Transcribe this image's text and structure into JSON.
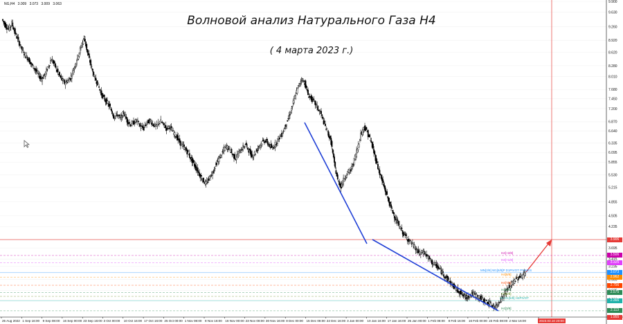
{
  "header": {
    "symbol": "NG,H4",
    "ohlc": [
      "3.009",
      "3.073",
      "3.009",
      "3.063"
    ]
  },
  "title": {
    "main": "Волновой анализ Натурального Газа H4",
    "sub": "( 4 марта 2023 г.)"
  },
  "price_axis": {
    "ticks": [
      "9.900",
      "9.630",
      "9.260",
      "8.920",
      "8.620",
      "8.280",
      "8.010",
      "7.680",
      "7.450",
      "7.200",
      "6.870",
      "6.640",
      "6.335",
      "6.095",
      "5.855",
      "5.530",
      "5.215",
      "4.855",
      "4.505",
      "4.235",
      "3.906",
      "3.695",
      "3.415",
      "3.235",
      "2.905",
      "2.625",
      "2.396",
      "1.955"
    ]
  },
  "time_axis": {
    "ticks": [
      "25 Aug 2022",
      "1 Sep 16:00",
      "9 Sep 08:00",
      "16 Sep 00:00",
      "23 Sep 16:00",
      "3 Oct 00:00",
      "10 Oct 16:00",
      "17 Oct 16:00",
      "25 Oct 00:00",
      "1 Nov 08:00",
      "8 Nov 16:00",
      "16 Nov 00:00",
      "23 Nov 08:00",
      "30 Nov 16:00",
      "8 Dec 00:00",
      "15 Dec 08:00",
      "22 Dec 16:00",
      "3 Jan 00:00",
      "10 Jan 16:00",
      "17 Jan 16:00",
      "25 Jan 00:00",
      "1 Feb 08:00",
      "8 Feb 16:00",
      "16 Feb 00:00",
      "23 Feb 08:00",
      "2 Mar 16:00",
      "2023.03.10 20:00"
    ]
  },
  "levels": [
    {
      "id": "mm-plus2",
      "label": "H4[+2/8]",
      "price": 3.506,
      "color": "#cc00aa"
    },
    {
      "id": "mm-plus1",
      "label": "H4[+1/8]",
      "price": 3.325,
      "color": "#e040fb"
    },
    {
      "id": "mn-d1-pivot",
      "label": "MN[2/8] W1[6/8]P D1PIVOT PIVMES",
      "price": 3.073,
      "color": "#1e90ff"
    },
    {
      "id": "mm-8-8",
      "label": "H4[8/8]",
      "price": 2.962,
      "color": "#ff8c00"
    },
    {
      "id": "mm-7-8",
      "label": "H4[7/8]",
      "price": 2.756,
      "color": "#ff4500"
    },
    {
      "id": "mm-6-8",
      "label": "H4[6/8]",
      "price": 2.575,
      "color": "#2e8b57"
    },
    {
      "id": "mm-5-8",
      "label": "H4[5/8]",
      "price": 2.477,
      "color": "#6b8e23"
    },
    {
      "id": "mm-d1-pivot",
      "label": "H4 D1[5/8] H4PIVOT",
      "price": 2.366,
      "color": "#20b2aa"
    },
    {
      "id": "mm-3-8",
      "label": "H4[3/8]",
      "price": 2.113,
      "color": "#2e8b57"
    }
  ],
  "price_tags": [
    {
      "text": "3.906",
      "price": 3.906,
      "color": "#e53935"
    },
    {
      "text": "3.506",
      "price": 3.506,
      "color": "#cc00aa"
    },
    {
      "text": "3.325",
      "price": 3.325,
      "color": "#e040fb"
    },
    {
      "text": "3.073",
      "price": 3.073,
      "color": "#1e90ff"
    },
    {
      "text": "2.962",
      "price": 2.962,
      "color": "#ff8c00"
    },
    {
      "text": "2.756",
      "price": 2.756,
      "color": "#ff4500"
    },
    {
      "text": "2.575",
      "price": 2.575,
      "color": "#2e8b57"
    },
    {
      "text": "2.366",
      "price": 2.366,
      "color": "#20b2aa"
    },
    {
      "text": "2.113",
      "price": 2.113,
      "color": "#2e8b57"
    },
    {
      "text": "1.955",
      "price": 1.955,
      "color": "#e53935"
    }
  ],
  "colors": {
    "accent_red": "#e53935",
    "trendline_blue": "#1f3fd6",
    "candle": "#000000",
    "grid": "#ececec"
  },
  "chart_data": {
    "type": "line",
    "series": [
      {
        "values": [
          9.45,
          9.3,
          9.2,
          9.35,
          9.1,
          8.9,
          8.7,
          8.55,
          8.45,
          8.3,
          8.2,
          8.05,
          7.95,
          8.05,
          8.25,
          8.45,
          8.3,
          8.1,
          7.95,
          7.85,
          7.9,
          8.0,
          8.25,
          8.5,
          8.75,
          9.0,
          8.6,
          8.3,
          8.0,
          7.85,
          7.6,
          7.45,
          7.35,
          7.2,
          7.0,
          7.05,
          6.95,
          7.1,
          6.9,
          6.8,
          6.85,
          6.9,
          6.75,
          6.7,
          6.85,
          6.9,
          6.8,
          6.75,
          6.9,
          6.8,
          6.7,
          6.75,
          6.6,
          6.5,
          6.35,
          6.25,
          6.15,
          6.0,
          5.85,
          5.7,
          5.55,
          5.4,
          5.3,
          5.45,
          5.6,
          5.8,
          5.95,
          6.1,
          6.25,
          6.2,
          6.05,
          5.95,
          6.1,
          6.2,
          6.3,
          6.15,
          6.0,
          6.1,
          6.25,
          6.35,
          6.4,
          6.3,
          6.2,
          6.3,
          6.45,
          6.55,
          6.75,
          6.95,
          7.2,
          7.5,
          7.75,
          7.95,
          7.85,
          7.55,
          7.45,
          7.35,
          7.2,
          7.05,
          6.8,
          6.6,
          6.35,
          5.8,
          5.4,
          5.25,
          5.45,
          5.6,
          5.65,
          5.9,
          6.2,
          6.55,
          6.75,
          6.6,
          6.4,
          6.1,
          5.8,
          5.5,
          5.25,
          5.0,
          4.75,
          4.55,
          4.35,
          4.2,
          4.05,
          3.95,
          3.85,
          3.75,
          3.62,
          3.55,
          3.6,
          3.5,
          3.4,
          3.3,
          3.25,
          3.15,
          3.05,
          2.95,
          2.85,
          2.75,
          2.65,
          2.6,
          2.5,
          2.45,
          2.5,
          2.55,
          2.5,
          2.45,
          2.4,
          2.35,
          2.3,
          2.25,
          2.2,
          2.35,
          2.45,
          2.6,
          2.7,
          2.8,
          2.9,
          2.95,
          3.0,
          3.063
        ]
      }
    ],
    "ylim": [
      1.955,
      9.9
    ],
    "annotations": [
      "trendline 1",
      "trendline 2",
      "forecast arrow"
    ]
  }
}
